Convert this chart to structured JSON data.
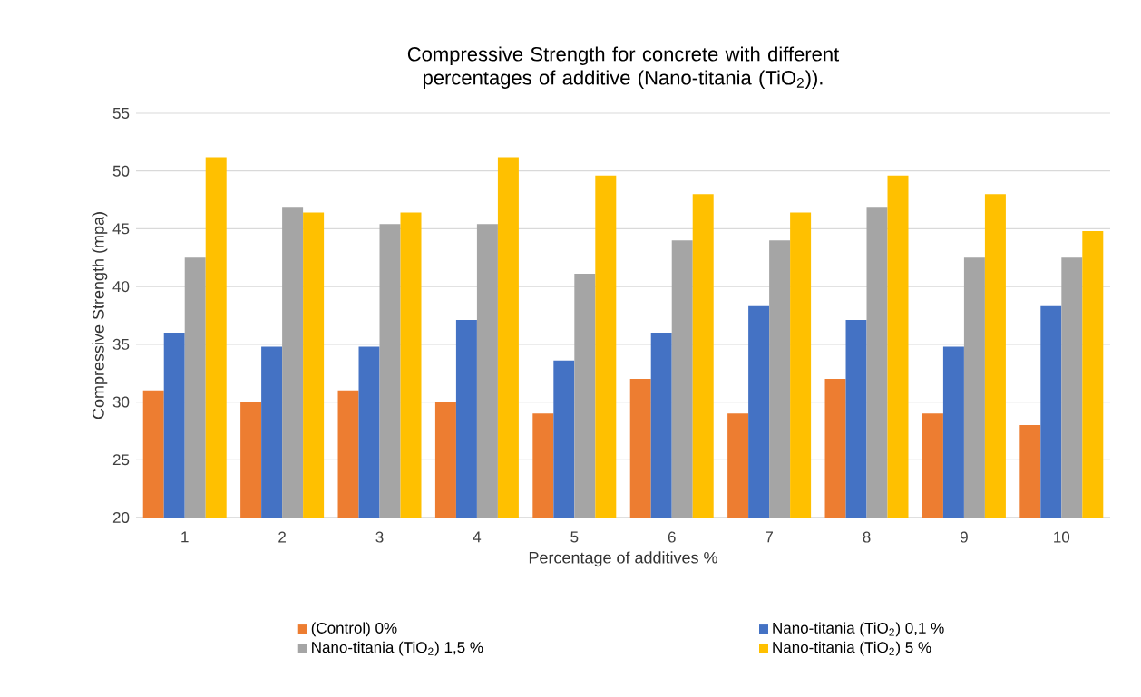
{
  "chart_data": {
    "type": "bar",
    "title": "Compressive Strength for concrete with different percentages of additive  (Nano-titania (TiO$_{2}$)).",
    "xlabel": "Percentage of additives %",
    "ylabel": "Compressive Strength (mpa)",
    "categories": [
      "1",
      "2",
      "3",
      "4",
      "5",
      "6",
      "7",
      "8",
      "9",
      "10"
    ],
    "series": [
      {
        "name": "(Control) 0%",
        "color": "#ed7d31",
        "values": [
          31,
          30,
          31,
          30,
          29,
          32,
          29,
          32,
          29,
          28
        ]
      },
      {
        "name": "Nano-titania (TiO$_{2}$) 0,1 %",
        "color": "#4472c4",
        "values": [
          36,
          34.8,
          34.8,
          37.1,
          33.6,
          36,
          38.3,
          37.1,
          34.8,
          38.3
        ]
      },
      {
        "name": "Nano-titania (TiO$_{2}$) 1,5 %",
        "color": "#a5a5a5",
        "values": [
          42.5,
          46.9,
          45.4,
          45.4,
          41.1,
          44,
          44,
          46.9,
          42.5,
          42.5
        ]
      },
      {
        "name": "Nano-titania (TiO$_{2}$) 5 %",
        "color": "#ffc000",
        "values": [
          51.2,
          46.4,
          46.4,
          51.2,
          49.6,
          48,
          46.4,
          49.6,
          48,
          44.8
        ]
      }
    ],
    "ylim": [
      20,
      55
    ],
    "yticks": [
      20,
      25,
      30,
      35,
      40,
      45,
      50,
      55
    ],
    "grid": "y",
    "legend": "bottom"
  }
}
